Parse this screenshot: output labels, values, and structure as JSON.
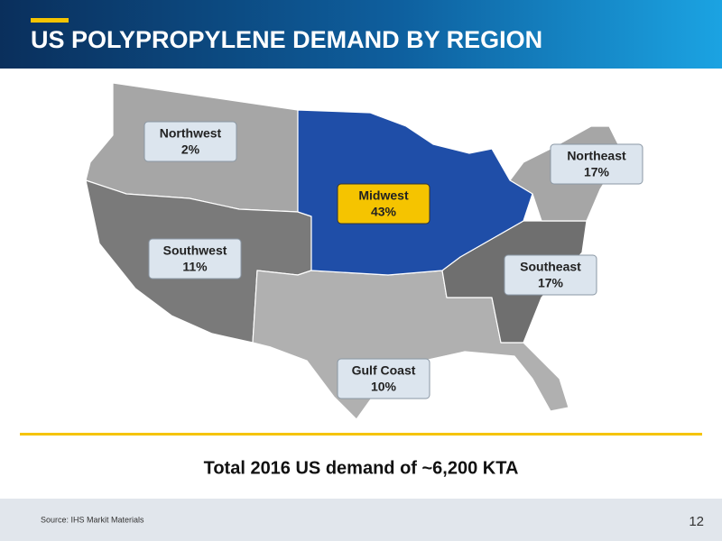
{
  "header": {
    "title": "US POLYPROPYLENE DEMAND BY REGION"
  },
  "regions": [
    {
      "name": "Northwest",
      "share": "2%"
    },
    {
      "name": "Northeast",
      "share": "17%"
    },
    {
      "name": "Midwest",
      "share": "43%"
    },
    {
      "name": "Southwest",
      "share": "11%"
    },
    {
      "name": "Southeast",
      "share": "17%"
    },
    {
      "name": "Gulf Coast",
      "share": "10%"
    }
  ],
  "summary": "Total 2016 US demand of ~6,200 KTA",
  "footer": {
    "source": "Source: IHS Markit Materials",
    "page": "12"
  }
}
